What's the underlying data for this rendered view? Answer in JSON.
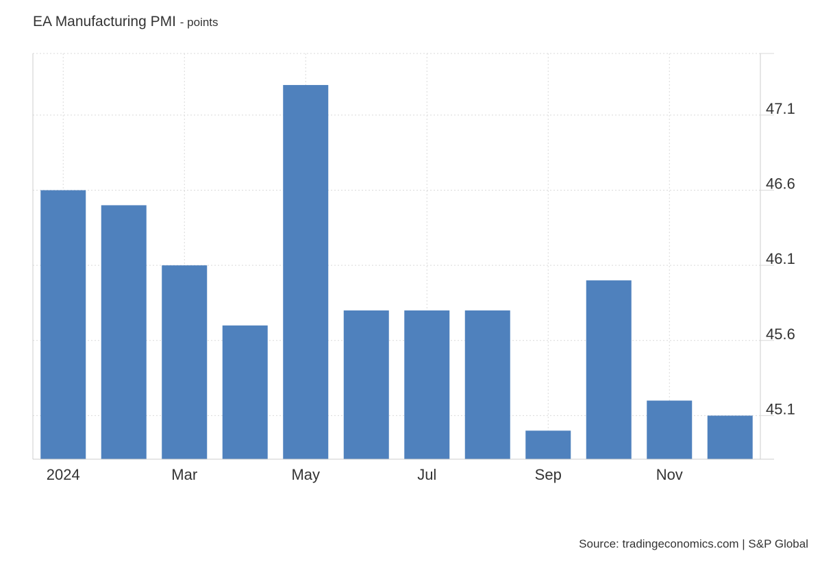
{
  "header": {
    "title": "EA Manufacturing PMI",
    "unit": "- points"
  },
  "footer": {
    "source": "Source: tradingeconomics.com | S&P Global"
  },
  "colors": {
    "bar": "#4f81bd",
    "grid": "#d9d9d9",
    "axis": "#cccccc"
  },
  "chart_data": {
    "type": "bar",
    "title": "EA Manufacturing PMI",
    "ylabel": "points",
    "xlabel": "",
    "categories": [
      "Jan 2024",
      "Feb 2024",
      "Mar 2024",
      "Apr 2024",
      "May 2024",
      "Jun 2024",
      "Jul 2024",
      "Aug 2024",
      "Sep 2024",
      "Oct 2024",
      "Nov 2024",
      "Dec 2024"
    ],
    "x_tick_labels": [
      {
        "index": 0,
        "label": "2024"
      },
      {
        "index": 2,
        "label": "Mar"
      },
      {
        "index": 4,
        "label": "May"
      },
      {
        "index": 6,
        "label": "Jul"
      },
      {
        "index": 8,
        "label": "Sep"
      },
      {
        "index": 10,
        "label": "Nov"
      }
    ],
    "values": [
      46.6,
      46.5,
      46.1,
      45.7,
      47.3,
      45.8,
      45.8,
      45.8,
      45.0,
      46.0,
      45.2,
      45.1
    ],
    "y_ticks": [
      45.1,
      45.6,
      46.1,
      46.6,
      47.1
    ],
    "ylim": [
      44.81,
      47.51
    ],
    "grid": true,
    "y_axis_side": "right",
    "legend": "none"
  }
}
